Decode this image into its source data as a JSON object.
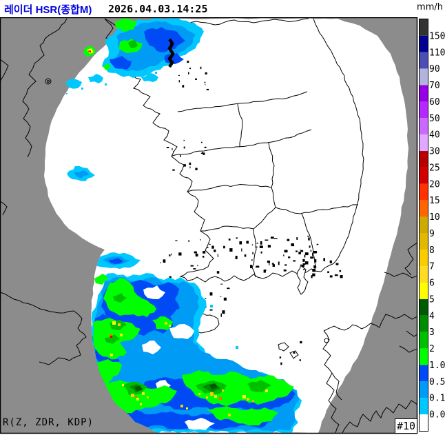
{
  "header": {
    "title": "레이더 HSR(종합M)",
    "datetime": "2026.04.03.14:25"
  },
  "footer": {
    "product": "R(Z, ZDR, KDP)",
    "frame": "#10"
  },
  "colors": {
    "title": "#0000e0",
    "map_land": "#8c8c8c",
    "radar_coverage": "#ffffff",
    "boundary": "#000000"
  },
  "legend": {
    "unit": "mm/h",
    "segments": [
      {
        "color": "#333333",
        "label": "150"
      },
      {
        "color": "#000390",
        "label": "110"
      },
      {
        "color": "#4C4EB1",
        "label": "90"
      },
      {
        "color": "#B3B4DE",
        "label": "70"
      },
      {
        "color": "#9300E4",
        "label": "60"
      },
      {
        "color": "#B329FF",
        "label": "50"
      },
      {
        "color": "#C969FF",
        "label": "40"
      },
      {
        "color": "#E0A9FF",
        "label": "30"
      },
      {
        "color": "#B40000",
        "label": "25"
      },
      {
        "color": "#D20000",
        "label": "20"
      },
      {
        "color": "#FF3200",
        "label": "15"
      },
      {
        "color": "#FF6600",
        "label": "10"
      },
      {
        "color": "#CCAA00",
        "label": "9"
      },
      {
        "color": "#E0B900",
        "label": "8"
      },
      {
        "color": "#F9CD00",
        "label": "7"
      },
      {
        "color": "#FFDC1F",
        "label": "6"
      },
      {
        "color": "#FFFF00",
        "label": "5"
      },
      {
        "color": "#005A00",
        "label": "4"
      },
      {
        "color": "#008C00",
        "label": "3"
      },
      {
        "color": "#00BE00",
        "label": "2"
      },
      {
        "color": "#00FF00",
        "label": "1.0"
      },
      {
        "color": "#004AF5",
        "label": "0.5"
      },
      {
        "color": "#009BF5",
        "label": "0.1"
      },
      {
        "color": "#00C8FF",
        "label": "0.0"
      },
      {
        "color": "#FFFFFF",
        "label": ""
      }
    ]
  }
}
